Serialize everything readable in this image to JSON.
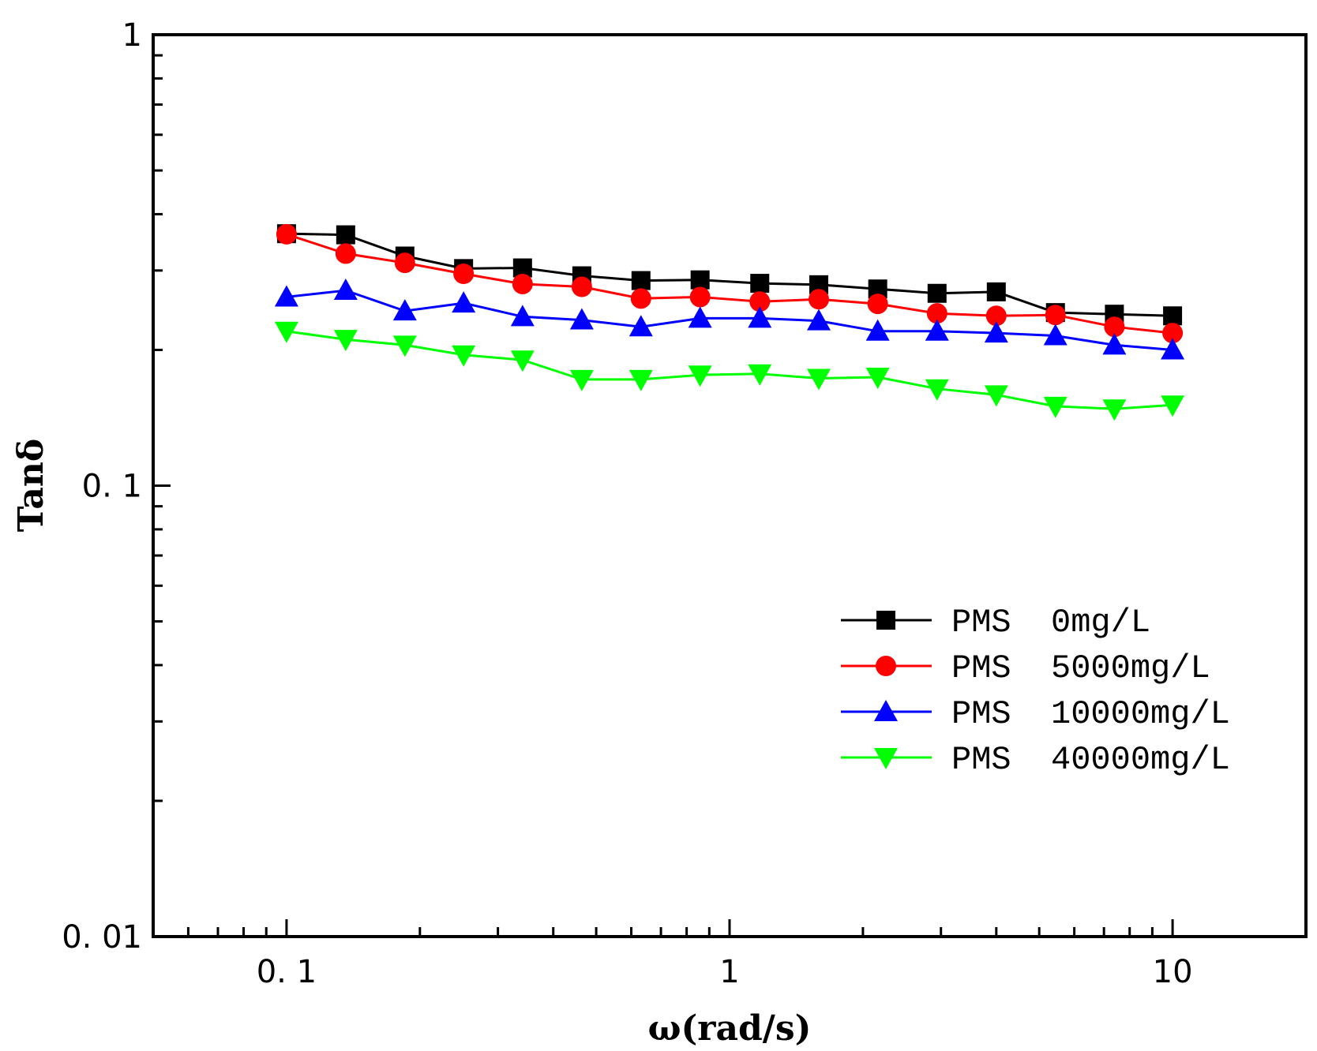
{
  "chart_data": {
    "type": "line",
    "title": "",
    "xlabel": "ω(rad/s)",
    "ylabel": "Tanδ",
    "x_scale": "log",
    "y_scale": "log",
    "xlim": [
      0.05,
      20
    ],
    "ylim": [
      0.01,
      1
    ],
    "x_ticks": [
      {
        "value": 0.1,
        "label": "0. 1"
      },
      {
        "value": 1,
        "label": "1"
      },
      {
        "value": 10,
        "label": "10"
      }
    ],
    "y_ticks": [
      {
        "value": 1,
        "label": "1"
      },
      {
        "value": 0.1,
        "label": "0. 1"
      },
      {
        "value": 0.01,
        "label": "0. 01"
      }
    ],
    "grid": false,
    "legend_position": "lower-right",
    "x": [
      0.1,
      0.136,
      0.185,
      0.251,
      0.341,
      0.464,
      0.631,
      0.858,
      1.17,
      1.59,
      2.16,
      2.94,
      4.0,
      5.44,
      7.39,
      10.0
    ],
    "series": [
      {
        "name": "PMS  0mg/L",
        "color": "#000000",
        "marker": "square",
        "values": [
          0.362,
          0.36,
          0.323,
          0.303,
          0.304,
          0.292,
          0.285,
          0.286,
          0.281,
          0.279,
          0.273,
          0.267,
          0.269,
          0.242,
          0.24,
          0.238
        ]
      },
      {
        "name": "PMS  5000mg/L",
        "color": "#ff0000",
        "marker": "circle",
        "values": [
          0.361,
          0.327,
          0.312,
          0.295,
          0.28,
          0.276,
          0.26,
          0.262,
          0.256,
          0.259,
          0.253,
          0.241,
          0.238,
          0.239,
          0.225,
          0.218
        ]
      },
      {
        "name": "PMS  10000mg/L",
        "color": "#0000ff",
        "marker": "triangle-up",
        "values": [
          0.262,
          0.271,
          0.244,
          0.254,
          0.237,
          0.233,
          0.225,
          0.235,
          0.235,
          0.232,
          0.22,
          0.22,
          0.218,
          0.215,
          0.205,
          0.2
        ]
      },
      {
        "name": "PMS  40000mg/L",
        "color": "#00ff00",
        "marker": "triangle-down",
        "values": [
          0.22,
          0.211,
          0.205,
          0.195,
          0.19,
          0.172,
          0.172,
          0.176,
          0.177,
          0.173,
          0.174,
          0.164,
          0.159,
          0.15,
          0.148,
          0.151
        ]
      }
    ]
  }
}
